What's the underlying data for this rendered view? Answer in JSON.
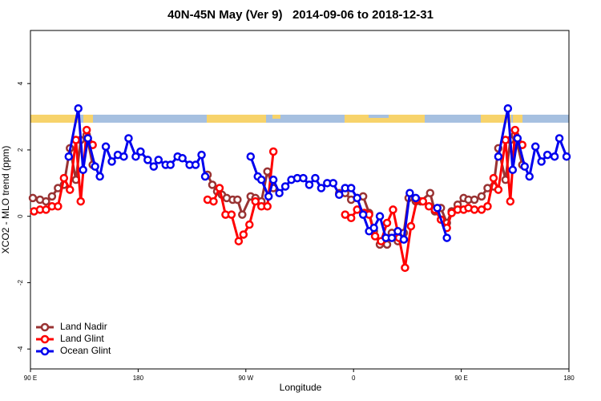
{
  "chart_data": {
    "type": "line",
    "title": "40N-45N May (Ver 9)   2014-09-06 to 2018-12-31",
    "x_label": "Longitude",
    "y_label": "XCO2 - MLO trend (ppm)",
    "xlim": [
      90,
      540
    ],
    "ylim": [
      -4.6,
      5.6
    ],
    "xticks": [
      {
        "value": 90,
        "label": "90 E"
      },
      {
        "value": 180,
        "label": "180"
      },
      {
        "value": 270,
        "label": "90 W"
      },
      {
        "value": 360,
        "label": "0"
      },
      {
        "value": 450,
        "label": "90 E"
      },
      {
        "value": 540,
        "label": "180"
      }
    ],
    "yticks": [
      -4,
      -2,
      0,
      2,
      4
    ],
    "legend": "bottom-left",
    "series": [
      {
        "name": "Land Nadir",
        "color": "#993333",
        "x": [
          92,
          98,
          103,
          108,
          113,
          118,
          123,
          128,
          132,
          137,
          142,
          null,
          238,
          242,
          246,
          250,
          254,
          259,
          263,
          267,
          274,
          278,
          283,
          288,
          293,
          null,
          348,
          353,
          358,
          363,
          368,
          373,
          377,
          382,
          388,
          392,
          397,
          402,
          406,
          412,
          416,
          424,
          428,
          433,
          438,
          442,
          447,
          452,
          456,
          461,
          467,
          472,
          477,
          481,
          487,
          491,
          495,
          501
        ],
        "values": [
          0.55,
          0.5,
          0.45,
          0.6,
          0.85,
          0.95,
          2.05,
          1.1,
          2.3,
          2.45,
          1.55,
          null,
          1.25,
          0.95,
          0.75,
          0.65,
          0.55,
          0.5,
          0.5,
          0.05,
          0.6,
          0.55,
          0.45,
          1.35,
          0.85,
          null,
          0.7,
          0.7,
          0.5,
          0.55,
          0.6,
          0.1,
          -0.45,
          -0.85,
          -0.85,
          -0.5,
          -0.75,
          -0.5,
          0.55,
          0.45,
          0.45,
          0.7,
          0.15,
          0.25,
          -0.2,
          0.15,
          0.35,
          0.55,
          0.5,
          0.5,
          0.6,
          0.85,
          0.9,
          2.05,
          1.1,
          2.3,
          2.45,
          1.55
        ]
      },
      {
        "name": "Land Glint",
        "color": "#ff0000",
        "x": [
          93,
          98,
          103,
          108,
          113,
          118,
          123,
          128,
          132,
          137,
          142,
          null,
          238,
          243,
          248,
          253,
          258,
          264,
          268,
          273,
          278,
          283,
          288,
          293,
          null,
          353,
          358,
          363,
          369,
          373,
          378,
          383,
          388,
          393,
          398,
          403,
          408,
          413,
          418,
          423,
          428,
          433,
          438,
          442,
          447,
          452,
          456,
          461,
          467,
          472,
          477,
          481,
          487,
          491,
          495,
          501
        ],
        "values": [
          0.15,
          0.2,
          0.2,
          0.3,
          0.3,
          1.15,
          0.8,
          2.3,
          0.45,
          2.6,
          2.15,
          null,
          0.5,
          0.45,
          0.85,
          0.05,
          0.05,
          -0.75,
          -0.55,
          -0.25,
          0.45,
          0.3,
          0.3,
          1.95,
          null,
          0.05,
          -0.05,
          0.2,
          0.1,
          0.05,
          -0.6,
          -0.75,
          -0.2,
          0.2,
          -0.65,
          -1.55,
          -0.3,
          0.5,
          0.45,
          0.3,
          0.2,
          -0.1,
          -0.35,
          0.1,
          0.2,
          0.2,
          0.25,
          0.2,
          0.2,
          0.3,
          1.15,
          0.8,
          2.3,
          0.45,
          2.6,
          2.15
        ]
      },
      {
        "name": "Ocean Glint",
        "color": "#0000ee",
        "x": [
          122,
          130,
          134,
          138,
          144,
          148,
          153,
          158,
          163,
          168,
          172,
          178,
          182,
          188,
          193,
          197,
          203,
          207,
          213,
          217,
          223,
          228,
          233,
          236,
          null,
          274,
          280,
          283,
          289,
          293,
          298,
          303,
          308,
          313,
          318,
          323,
          328,
          333,
          338,
          343,
          348,
          353,
          358,
          363,
          368,
          373,
          377,
          382,
          387,
          392,
          397,
          402,
          407,
          412,
          null,
          430,
          438,
          null,
          481,
          489,
          493,
          497,
          503,
          507,
          512,
          517,
          522,
          528,
          532,
          538
        ],
        "values": [
          1.8,
          3.25,
          1.4,
          2.35,
          1.5,
          1.2,
          2.1,
          1.65,
          1.85,
          1.8,
          2.35,
          1.8,
          1.95,
          1.7,
          1.5,
          1.7,
          1.55,
          1.55,
          1.8,
          1.75,
          1.55,
          1.55,
          1.85,
          1.2,
          null,
          1.8,
          1.2,
          1.1,
          0.6,
          1.1,
          0.7,
          0.9,
          1.1,
          1.15,
          1.15,
          0.95,
          1.15,
          0.85,
          1.0,
          1.0,
          0.65,
          0.85,
          0.85,
          0.55,
          0.05,
          -0.45,
          -0.35,
          0.0,
          -0.65,
          -0.65,
          -0.45,
          -0.7,
          0.7,
          0.55,
          null,
          0.25,
          -0.65,
          null,
          1.8,
          3.25,
          1.4,
          2.35,
          1.5,
          1.2,
          2.1,
          1.65,
          1.85,
          1.8,
          2.35,
          1.8
        ]
      }
    ]
  }
}
